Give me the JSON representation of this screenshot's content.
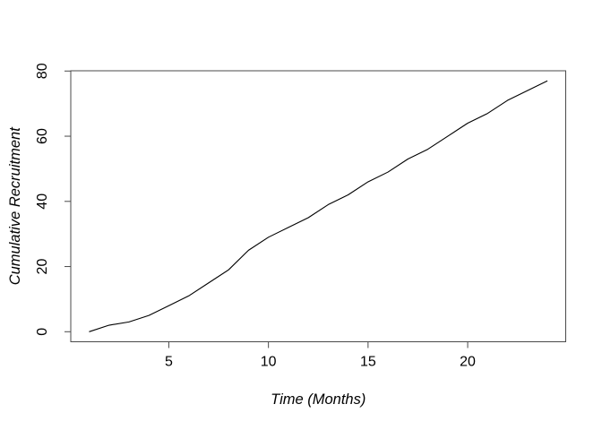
{
  "chart_data": {
    "type": "line",
    "title": "",
    "xlabel": "Time (Months)",
    "ylabel": "Cumulative Recruitment",
    "x": [
      1,
      2,
      3,
      4,
      5,
      6,
      7,
      8,
      9,
      10,
      11,
      12,
      13,
      14,
      15,
      16,
      17,
      18,
      19,
      20,
      21,
      22,
      23,
      24
    ],
    "series": [
      {
        "name": "Cumulative Recruitment",
        "values": [
          0,
          2,
          3,
          5,
          8,
          11,
          15,
          19,
          25,
          29,
          32,
          35,
          39,
          42,
          46,
          49,
          53,
          56,
          60,
          64,
          67,
          71,
          74,
          77
        ]
      }
    ],
    "xticks": [
      5,
      10,
      15,
      20
    ],
    "xtick_labels": [
      "5",
      "10",
      "15",
      "20"
    ],
    "yticks": [
      0,
      20,
      40,
      60,
      80
    ],
    "ytick_labels": [
      "0",
      "20",
      "40",
      "60",
      "80"
    ],
    "xlim": [
      0.08,
      24.92
    ],
    "ylim": [
      -3.08,
      80.08
    ],
    "grid": false,
    "legend_position": "none",
    "line_color": "#000000",
    "axis_color": "#4a4a4a",
    "text_color": "#000000",
    "background": "#ffffff"
  }
}
